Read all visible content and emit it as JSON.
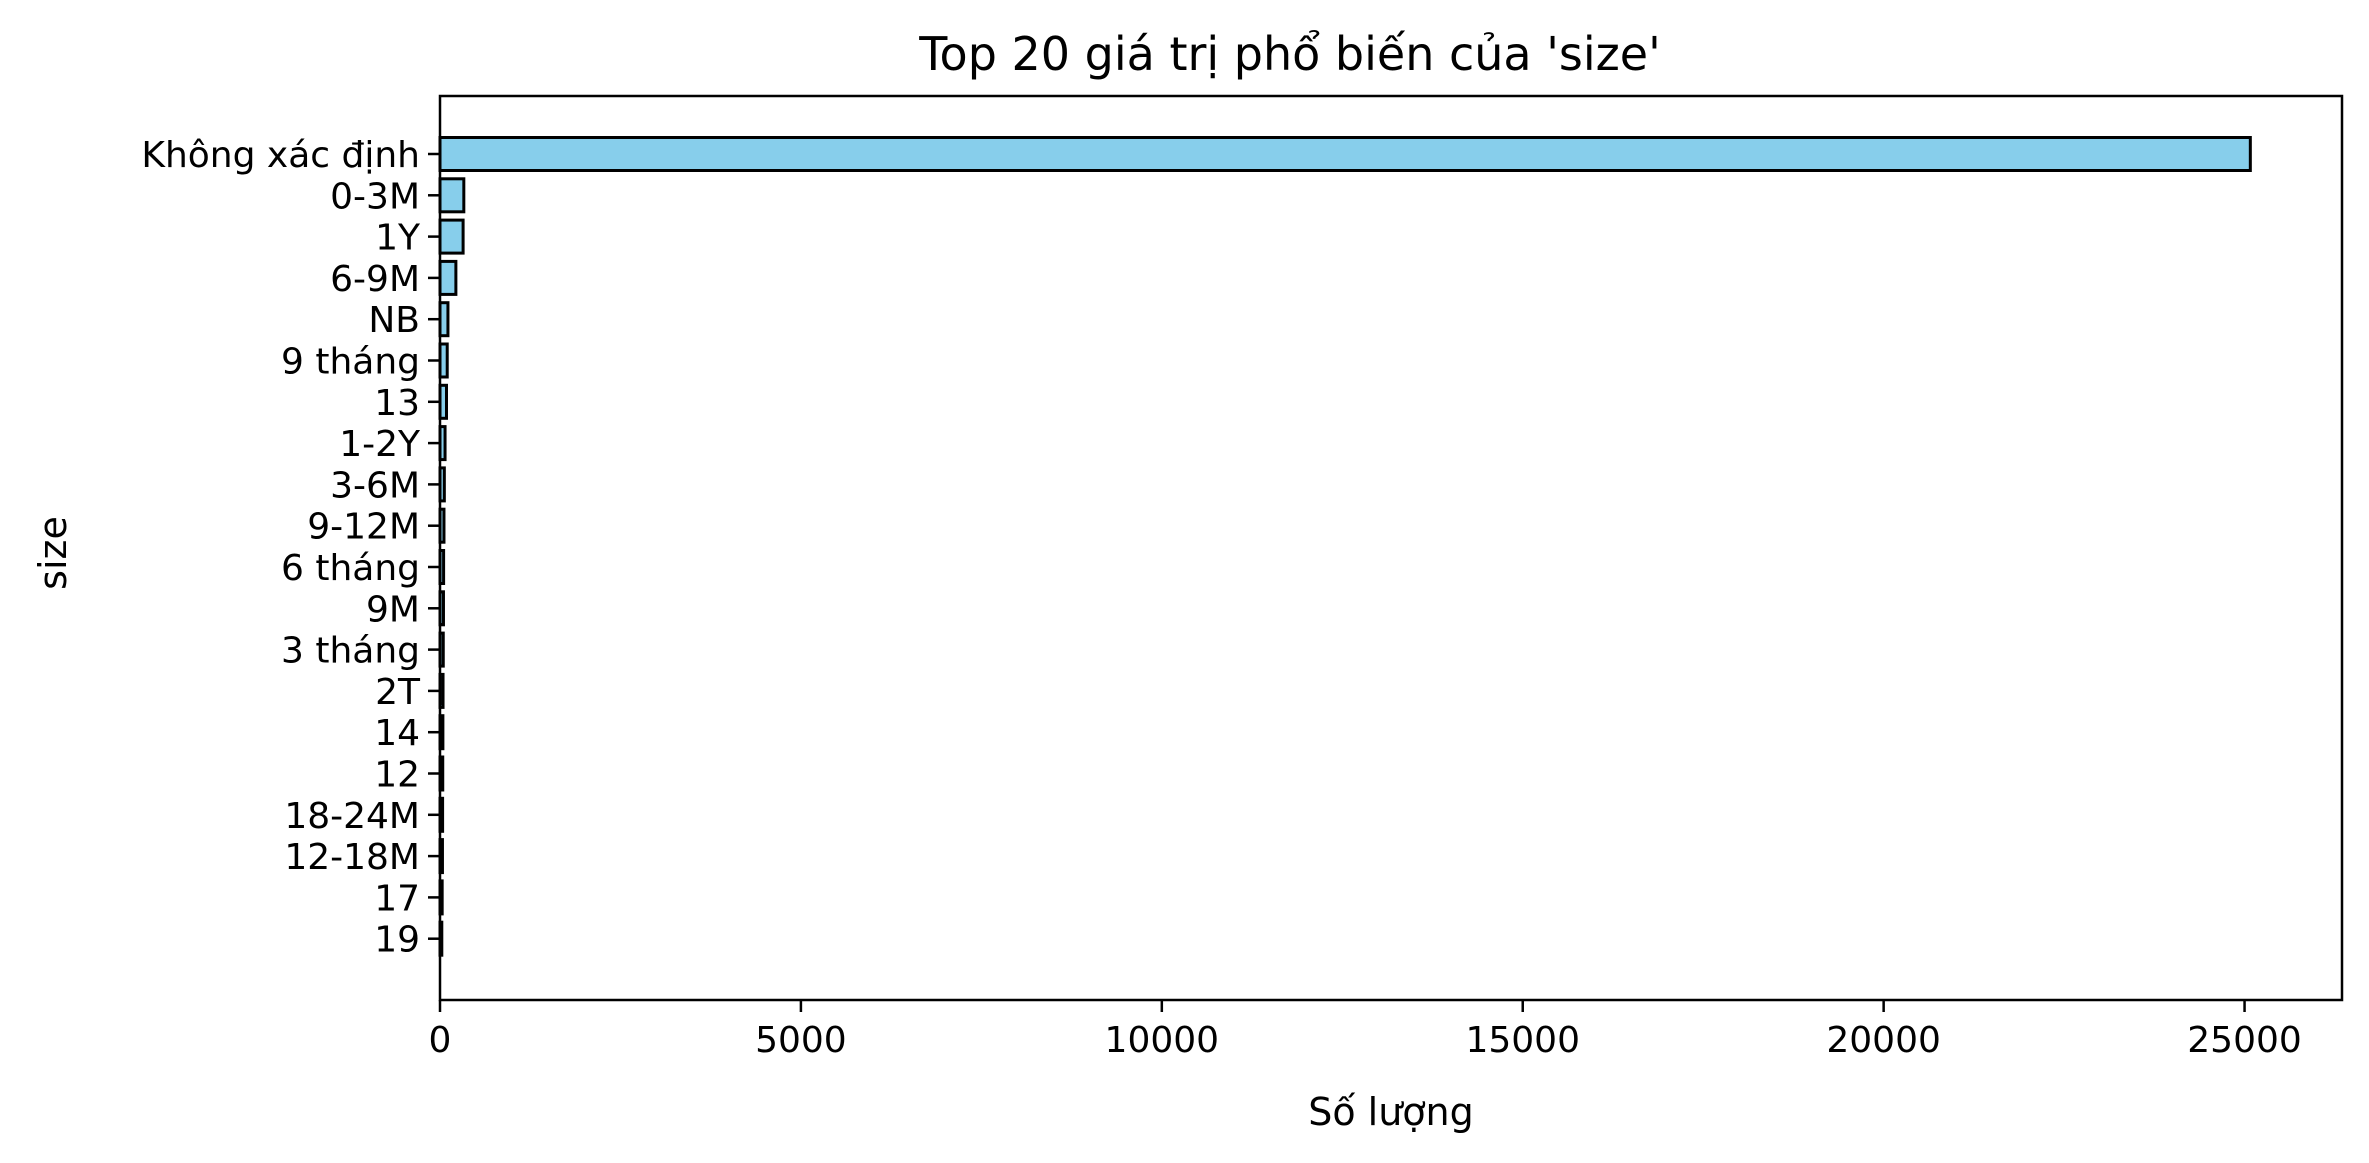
{
  "chart_data": {
    "type": "bar",
    "orientation": "horizontal",
    "title": "Top 20 giá trị phổ biến của 'size'",
    "xlabel": "Số lượng",
    "ylabel": "size",
    "categories": [
      "Không xác định",
      "0-3M",
      "1Y",
      "6-9M",
      "NB",
      "9 tháng",
      "13",
      "1-2Y",
      "3-6M",
      "9-12M",
      "6 tháng",
      "9M",
      "3 tháng",
      "2T",
      "14",
      "12",
      "18-24M",
      "12-18M",
      "17",
      "19"
    ],
    "values": [
      25080,
      330,
      320,
      220,
      110,
      100,
      90,
      70,
      60,
      55,
      50,
      48,
      45,
      42,
      40,
      38,
      36,
      34,
      30,
      25
    ],
    "xlim": [
      0,
      26350
    ],
    "xticks": [
      0,
      5000,
      10000,
      15000,
      20000,
      25000
    ],
    "grid": false,
    "bar_color": "#87ceeb",
    "edge_color": "#000000"
  }
}
